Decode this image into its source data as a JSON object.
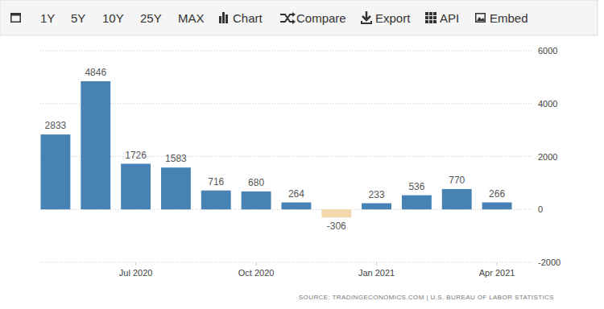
{
  "toolbar": {
    "buttons": [
      "1Y",
      "5Y",
      "10Y",
      "25Y",
      "MAX",
      "Chart",
      "Compare",
      "Export",
      "API",
      "Embed"
    ]
  },
  "footer": {
    "source": "SOURCE: TRADINGECONOMICS.COM | U.S. BUREAU OF LABOR STATISTICS"
  },
  "chart_data": {
    "type": "bar",
    "categories": [
      null,
      null,
      "Jul 2020",
      null,
      null,
      "Oct 2020",
      null,
      null,
      "Jan 2021",
      null,
      null,
      "Apr 2021"
    ],
    "values": [
      2833,
      4846,
      1726,
      1583,
      716,
      680,
      264,
      -306,
      233,
      536,
      770,
      266
    ],
    "colors": [
      "#4682b4",
      "#4682b4",
      "#4682b4",
      "#4682b4",
      "#4682b4",
      "#4682b4",
      "#4682b4",
      "#f2d8ab",
      "#4682b4",
      "#4682b4",
      "#4682b4",
      "#4682b4"
    ],
    "ylim": [
      -2000,
      6000
    ],
    "yticks": [
      -2000,
      0,
      2000,
      4000,
      6000
    ],
    "grid": true,
    "data_labels": true
  }
}
